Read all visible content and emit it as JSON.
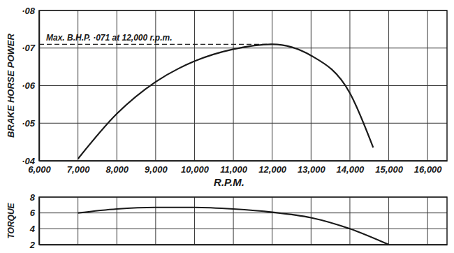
{
  "chart_data": [
    {
      "type": "line",
      "xlabel": "R.P.M.",
      "ylabel": "BRAKE HORSE POWER",
      "x": [
        7000,
        8000,
        9000,
        10000,
        11000,
        12000,
        13000,
        14000,
        14600
      ],
      "values": [
        0.0405,
        0.0525,
        0.061,
        0.0665,
        0.0697,
        0.071,
        0.068,
        0.058,
        0.0435
      ],
      "color": "#1a1a1a",
      "xlim": [
        6000,
        16500
      ],
      "ylim": [
        0.04,
        0.08
      ],
      "xticks": [
        {
          "value": 6000,
          "label": "6,000"
        },
        {
          "value": 7000,
          "label": "7,000"
        },
        {
          "value": 8000,
          "label": "8,000"
        },
        {
          "value": 9000,
          "label": "9,000"
        },
        {
          "value": 10000,
          "label": "10,000"
        },
        {
          "value": 11000,
          "label": "11,000"
        },
        {
          "value": 12000,
          "label": "12,000"
        },
        {
          "value": 13000,
          "label": "13,000"
        },
        {
          "value": 14000,
          "label": "14,000"
        },
        {
          "value": 15000,
          "label": "15,000"
        },
        {
          "value": 16000,
          "label": "16,000"
        }
      ],
      "yticks": [
        {
          "value": 0.04,
          "label": "·04"
        },
        {
          "value": 0.05,
          "label": "·05"
        },
        {
          "value": 0.06,
          "label": "·06"
        },
        {
          "value": 0.07,
          "label": "·07"
        },
        {
          "value": 0.08,
          "label": "·08"
        }
      ],
      "annotations": [
        {
          "text": "Max. B.H.P. ·071 at 12,000 r.p.m.",
          "x": 12000,
          "y": 0.071
        }
      ],
      "grid": true
    },
    {
      "type": "line",
      "ylabel": "TORQUE",
      "x": [
        7000,
        8000,
        9000,
        10000,
        11000,
        12000,
        13000,
        14000,
        15000
      ],
      "values": [
        6.0,
        6.5,
        6.7,
        6.7,
        6.5,
        6.1,
        5.4,
        4.0,
        2.0
      ],
      "color": "#1a1a1a",
      "xlim": [
        6000,
        16500
      ],
      "ylim": [
        2,
        8
      ],
      "xticks": [
        6000,
        7000,
        8000,
        9000,
        10000,
        11000,
        12000,
        13000,
        14000,
        15000,
        16000
      ],
      "yticks": [
        2,
        4,
        6,
        8
      ],
      "tick_labels": "y",
      "grid": true
    }
  ]
}
